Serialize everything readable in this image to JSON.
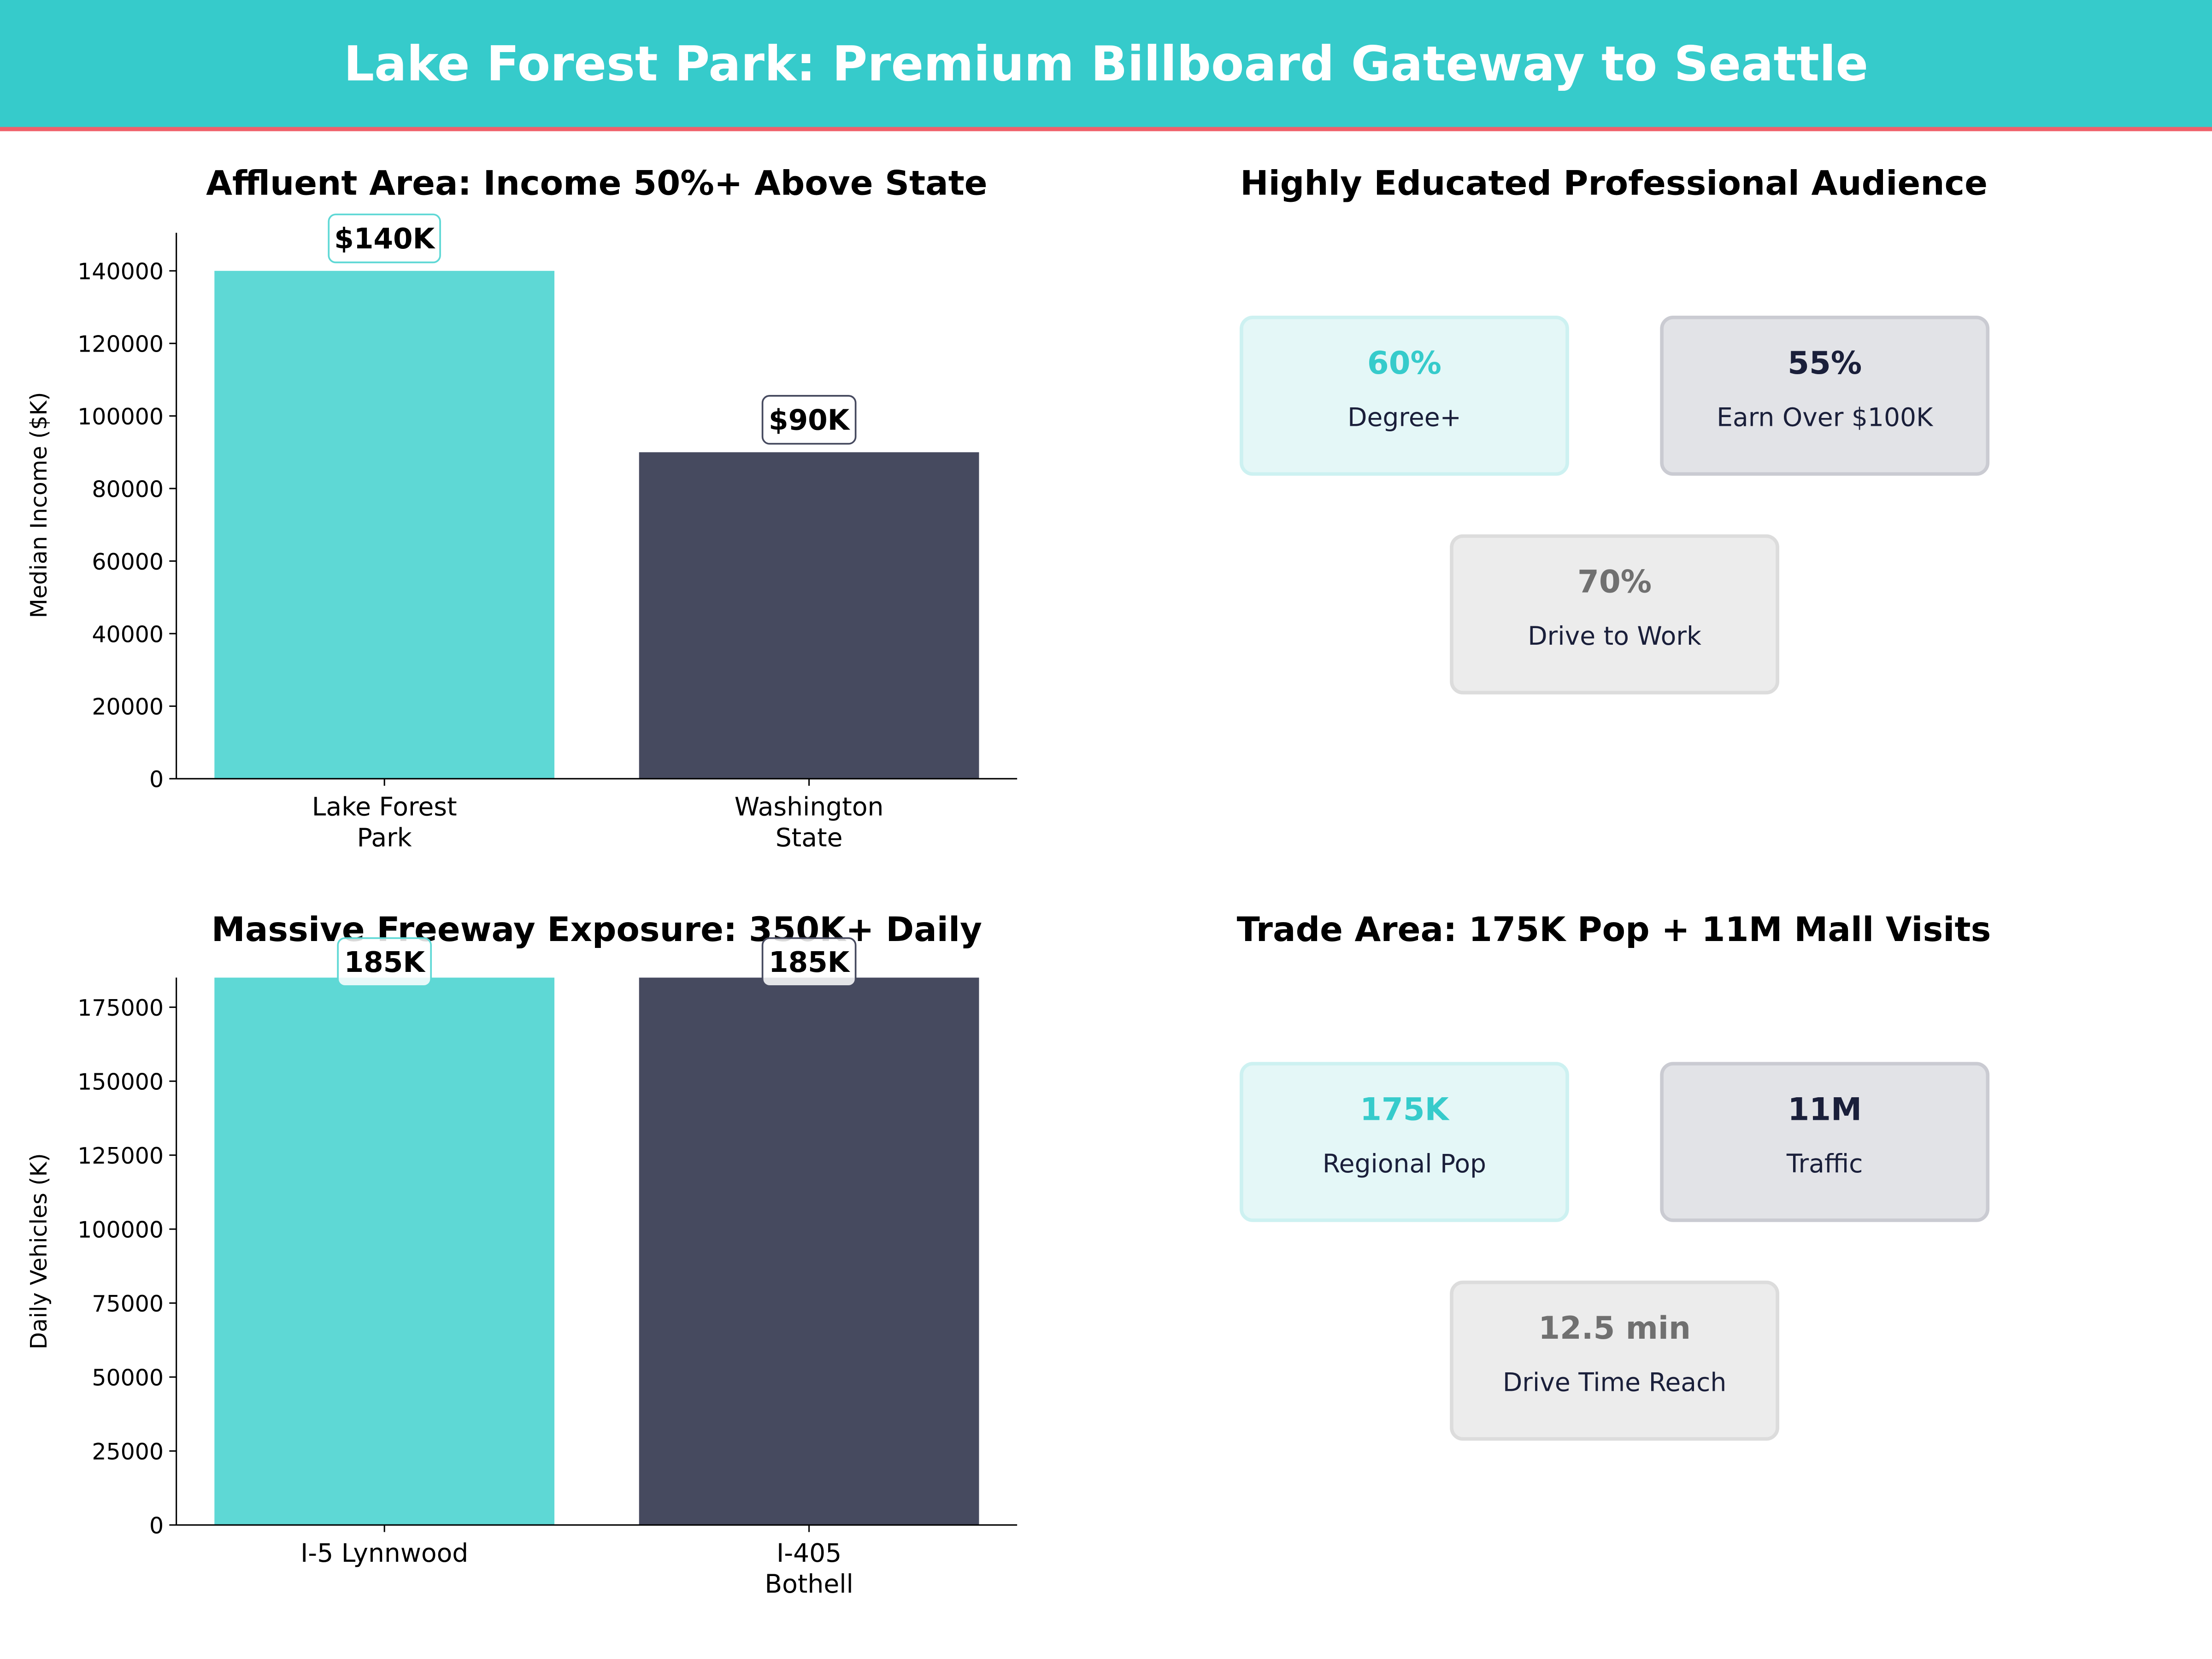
{
  "header": {
    "title": "Lake Forest Park: Premium Billboard Gateway to Seattle",
    "bg_color": "#36CBCB",
    "accent_line_color": "#F0606A"
  },
  "chart_data": [
    {
      "type": "bar",
      "title": "Affluent Area: Income 50%+ Above State",
      "categories": [
        "Lake Forest\nPark",
        "Washington\nState"
      ],
      "values": [
        140000,
        90000
      ],
      "data_labels": [
        "$140K",
        "$90K"
      ],
      "colors": [
        "#5ED8D5",
        "#464A5F"
      ],
      "ylabel": "Median Income ($K)",
      "xlabel": "",
      "ylim": [
        0,
        150500
      ],
      "yticks": [
        0,
        20000,
        40000,
        60000,
        80000,
        100000,
        120000,
        140000
      ],
      "grid": false
    },
    {
      "type": "bar",
      "title": "Massive Freeway Exposure: 350K+ Daily",
      "categories": [
        "I-5 Lynnwood",
        "I-405\nBothell"
      ],
      "values": [
        185000,
        185000
      ],
      "data_labels": [
        "185K",
        "185K"
      ],
      "colors": [
        "#5ED8D5",
        "#464A5F"
      ],
      "ylabel": "Daily Vehicles (K)",
      "xlabel": "",
      "ylim": [
        0,
        185000
      ],
      "yticks": [
        0,
        25000,
        50000,
        75000,
        100000,
        125000,
        150000,
        175000
      ],
      "grid": false
    }
  ],
  "panels": [
    {
      "title": "Highly Educated Professional Audience",
      "cards": [
        {
          "value": "60%",
          "label": "Degree+"
        },
        {
          "value": "55%",
          "label": "Earn Over $100K"
        },
        {
          "value": "70%",
          "label": "Drive to Work"
        }
      ]
    },
    {
      "title": "Trade Area: 175K Pop + 11M Mall Visits",
      "cards": [
        {
          "value": "175K",
          "label": "Regional Pop"
        },
        {
          "value": "11M",
          "label": "Traffic"
        },
        {
          "value": "12.5 min",
          "label": "Drive Time Reach"
        }
      ]
    }
  ],
  "card_styles": [
    {
      "bg": "#E4F7F7",
      "border": "#CDF1F1",
      "value_color": "#36CBCB"
    },
    {
      "bg": "#E2E3E7",
      "border": "#CACBD2",
      "value_color": "#1A1F3A"
    },
    {
      "bg": "#ECECEC",
      "border": "#DCDCDC",
      "value_color": "#707070"
    }
  ]
}
